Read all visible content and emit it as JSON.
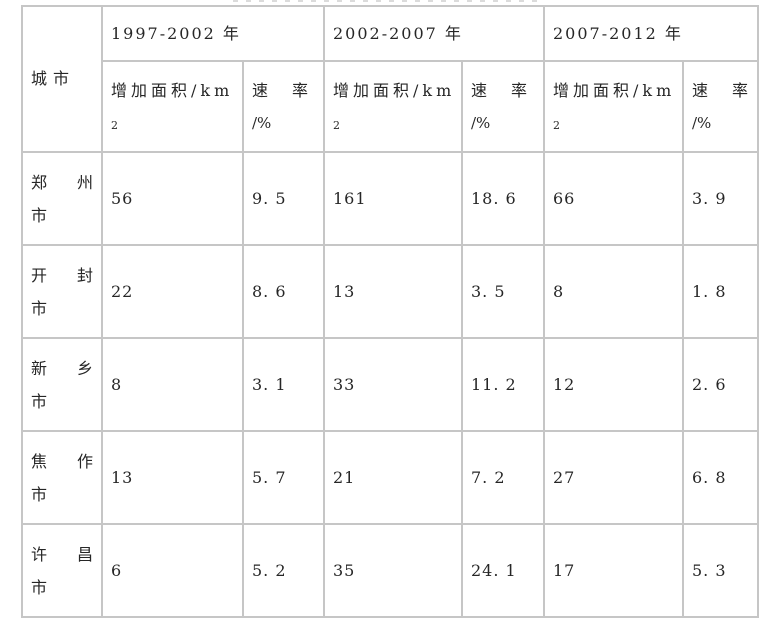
{
  "colors": {
    "border": "#c6c6c6",
    "text": "#262626",
    "background": "#ffffff"
  },
  "chart_data": {
    "type": "table",
    "title": "",
    "header": {
      "city": "城市",
      "periods": [
        "1997-2002 年",
        "2002-2007 年",
        "2007-2012 年"
      ],
      "area_label": "增加面积/km",
      "area_superscript": "2",
      "rate_label": "速率",
      "rate_unit": "/%"
    },
    "columns_per_period": [
      "增加面积/km²",
      "速率/%"
    ],
    "rows": [
      {
        "city": "郑州市",
        "values": [
          56,
          9.5,
          161,
          18.6,
          66,
          3.9
        ]
      },
      {
        "city": "开封市",
        "values": [
          22,
          8.6,
          13,
          3.5,
          8,
          1.8
        ]
      },
      {
        "city": "新乡市",
        "values": [
          8,
          3.1,
          33,
          11.2,
          12,
          2.6
        ]
      },
      {
        "city": "焦作市",
        "values": [
          13,
          5.7,
          21,
          7.2,
          27,
          6.8
        ]
      },
      {
        "city": "许昌市",
        "values": [
          6,
          5.2,
          35,
          24.1,
          17,
          5.3
        ]
      }
    ]
  }
}
